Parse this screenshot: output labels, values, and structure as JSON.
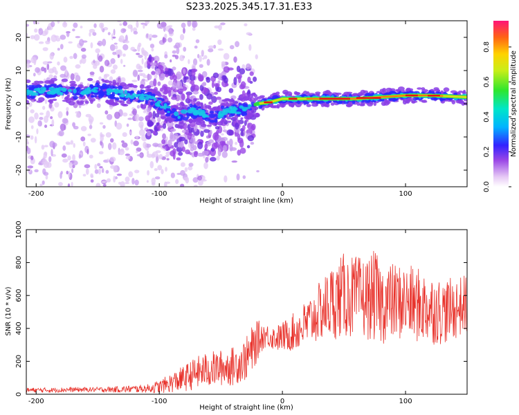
{
  "title": "S233.2025.345.17.31.E33",
  "chart_data": [
    {
      "type": "heatmap",
      "xlabel": "Height of straight line (km)",
      "ylabel": "Frequency (Hz)",
      "xlim": [
        -208,
        150
      ],
      "ylim": [
        -25,
        25
      ],
      "xticks": [
        -200,
        -100,
        0,
        100
      ],
      "yticks": [
        -20,
        -10,
        0,
        10,
        20
      ],
      "colorbar": {
        "label": "Normalized spectral amplitude",
        "range": [
          0,
          0.95
        ],
        "ticks": [
          0.0,
          0.2,
          0.4,
          0.6,
          0.8
        ]
      },
      "ridge": {
        "x": [
          -208,
          -190,
          -170,
          -150,
          -130,
          -110,
          -95,
          -85,
          -75,
          -65,
          -55,
          -45,
          -35,
          -28,
          -20,
          -10,
          0,
          20,
          40,
          60,
          80,
          100,
          120,
          150
        ],
        "freq_hz": [
          3.5,
          4,
          3.5,
          4,
          3,
          2,
          -1,
          -4,
          -2,
          -3,
          -4,
          -2,
          -2,
          -1,
          0,
          0.5,
          1.5,
          1.5,
          1.5,
          1.5,
          2,
          2.5,
          2.5,
          2
        ]
      }
    },
    {
      "type": "line",
      "xlabel": "Height of straight line (km)",
      "ylabel": "SNR (10 * v/v)",
      "xlim": [
        -208,
        150
      ],
      "ylim": [
        0,
        1000
      ],
      "xticks": [
        -200,
        -100,
        0,
        100
      ],
      "yticks": [
        0,
        200,
        400,
        600,
        800,
        1000
      ],
      "series": [
        {
          "name": "SNR",
          "color": "#e8312a",
          "x": [
            -208,
            -190,
            -170,
            -150,
            -130,
            -110,
            -100,
            -90,
            -80,
            -70,
            -60,
            -50,
            -40,
            -35,
            -30,
            -25,
            -20,
            -15,
            -10,
            -5,
            0,
            10,
            20,
            30,
            40,
            50,
            60,
            70,
            75,
            80,
            90,
            100,
            110,
            120,
            130,
            140,
            150
          ],
          "mean": [
            25,
            25,
            28,
            28,
            30,
            35,
            45,
            70,
            95,
            130,
            150,
            160,
            170,
            190,
            210,
            260,
            330,
            360,
            350,
            340,
            350,
            380,
            430,
            500,
            560,
            600,
            590,
            580,
            600,
            550,
            560,
            560,
            540,
            520,
            500,
            520,
            550
          ],
          "amp": [
            15,
            15,
            15,
            15,
            20,
            25,
            40,
            60,
            80,
            100,
            110,
            110,
            120,
            120,
            130,
            150,
            120,
            80,
            70,
            80,
            90,
            120,
            150,
            180,
            230,
            260,
            250,
            250,
            280,
            250,
            240,
            230,
            230,
            220,
            200,
            190,
            180
          ]
        }
      ]
    }
  ]
}
